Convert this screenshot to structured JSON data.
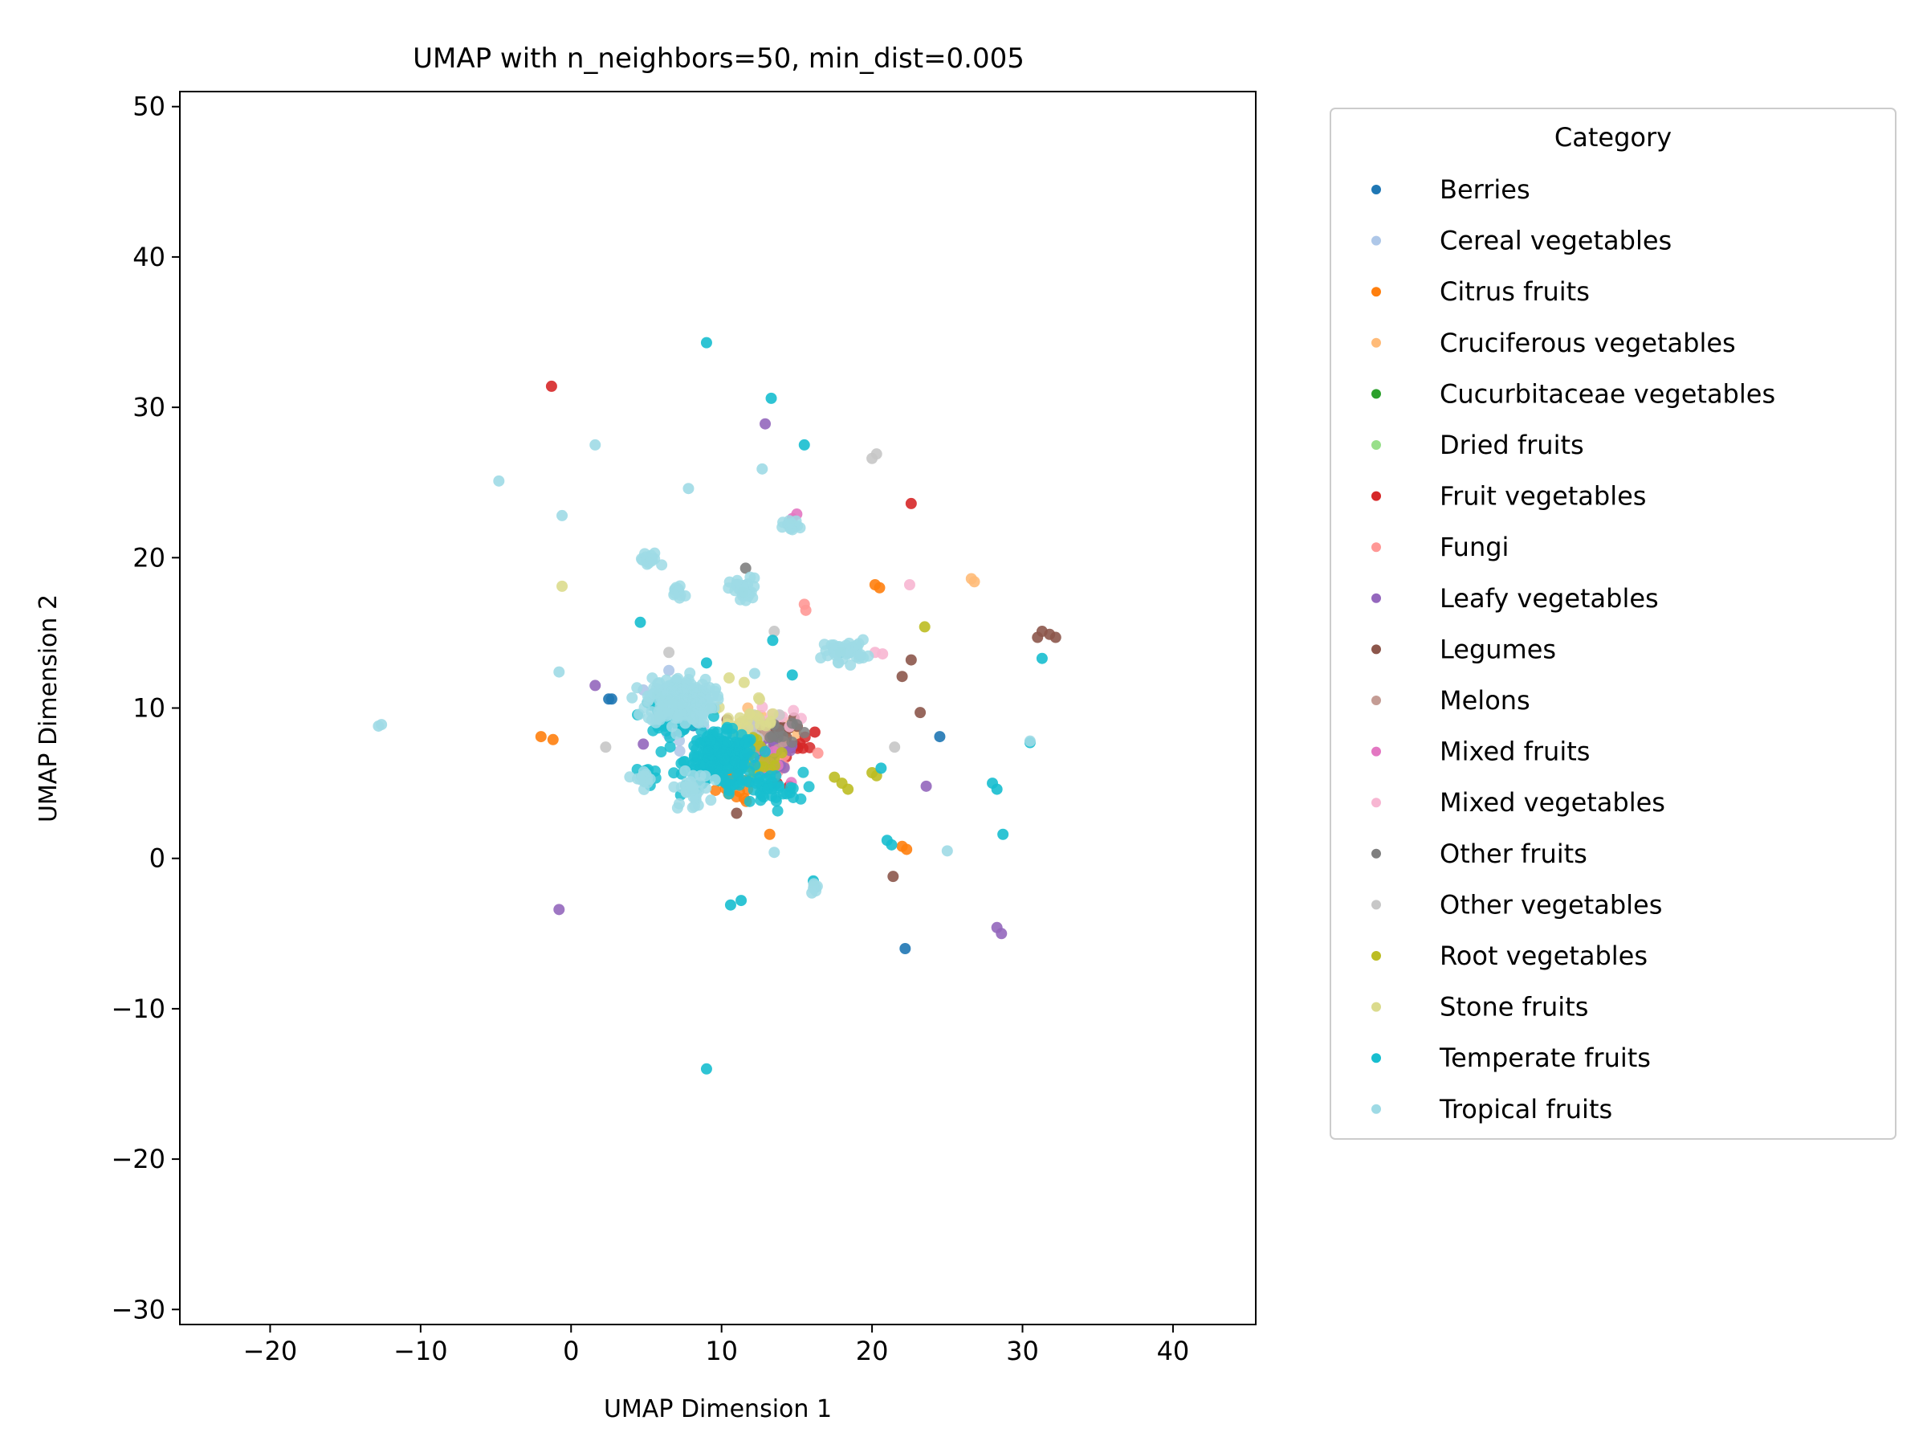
{
  "chart_data": {
    "type": "scatter",
    "title": "UMAP with n_neighbors=50, min_dist=0.005",
    "xlabel": "UMAP Dimension 1",
    "ylabel": "UMAP Dimension 2",
    "xlim": [
      -26,
      45.5
    ],
    "ylim": [
      -31,
      51
    ],
    "x_ticks": [
      -20,
      -10,
      0,
      10,
      20,
      30,
      40
    ],
    "y_ticks": [
      -30,
      -20,
      -10,
      0,
      10,
      20,
      30,
      40,
      50
    ],
    "x_tick_labels": [
      "−20",
      "−10",
      "0",
      "10",
      "20",
      "30",
      "40"
    ],
    "y_tick_labels": [
      "−30",
      "−20",
      "−10",
      "0",
      "10",
      "20",
      "30",
      "40",
      "50"
    ],
    "grid": false,
    "legend": {
      "title": "Category",
      "placement": "outside-right"
    },
    "series": [
      {
        "name": "Berries",
        "color": "#1f77b4",
        "points": [
          [
            2.5,
            10.6
          ],
          [
            24.5,
            8.1
          ],
          [
            22.2,
            -6.0
          ],
          [
            2.7,
            10.6
          ]
        ],
        "clusters": [
          [
            7.5,
            9.2,
            1.2,
            0.9,
            14
          ]
        ]
      },
      {
        "name": "Cereal vegetables",
        "color": "#aec7e8",
        "points": [
          [
            4.8,
            11.2
          ],
          [
            6.5,
            12.5
          ]
        ],
        "clusters": [
          [
            7.5,
            9.5,
            1.5,
            1.5,
            30
          ]
        ]
      },
      {
        "name": "Citrus fruits",
        "color": "#ff7f0e",
        "points": [
          [
            -2.0,
            8.1
          ],
          [
            -1.2,
            7.9
          ],
          [
            13.2,
            1.6
          ],
          [
            20.2,
            18.2
          ],
          [
            20.5,
            18.0
          ],
          [
            22.0,
            0.8
          ],
          [
            22.3,
            0.6
          ],
          [
            11.5,
            4.0
          ]
        ],
        "clusters": [
          [
            11.0,
            5.0,
            1.5,
            1.0,
            16
          ]
        ]
      },
      {
        "name": "Cruciferous vegetables",
        "color": "#ffbb78",
        "points": [
          [
            26.8,
            18.4
          ],
          [
            26.6,
            18.6
          ]
        ],
        "clusters": [
          [
            12.5,
            8.5,
            2.0,
            1.0,
            30
          ]
        ]
      },
      {
        "name": "Cucurbitaceae vegetables",
        "color": "#2ca02c",
        "points": [],
        "clusters": [
          [
            12.0,
            7.5,
            1.0,
            0.8,
            8
          ]
        ]
      },
      {
        "name": "Dried fruits",
        "color": "#98df8a",
        "points": [],
        "clusters": [
          [
            13.0,
            8.0,
            1.0,
            0.8,
            10
          ]
        ]
      },
      {
        "name": "Fruit vegetables",
        "color": "#d62728",
        "points": [
          [
            -1.3,
            31.4
          ],
          [
            22.6,
            23.6
          ],
          [
            16.2,
            8.4
          ],
          [
            13.7,
            5.0
          ],
          [
            14.5,
            4.8
          ]
        ],
        "clusters": [
          [
            14.5,
            7.5,
            1.2,
            1.0,
            16
          ]
        ]
      },
      {
        "name": "Fungi",
        "color": "#ff9896",
        "points": [
          [
            15.5,
            16.9
          ],
          [
            15.6,
            16.5
          ],
          [
            16.4,
            7.0
          ]
        ],
        "clusters": [
          [
            13.5,
            6.5,
            1.0,
            1.0,
            10
          ]
        ]
      },
      {
        "name": "Leafy vegetables",
        "color": "#9467bd",
        "points": [
          [
            12.9,
            28.9
          ],
          [
            -0.8,
            -3.4
          ],
          [
            23.6,
            4.8
          ],
          [
            28.3,
            -4.6
          ],
          [
            28.6,
            -5.0
          ],
          [
            4.8,
            7.6
          ],
          [
            1.6,
            11.5
          ]
        ],
        "clusters": [
          [
            13.5,
            7.0,
            1.5,
            1.5,
            26
          ]
        ]
      },
      {
        "name": "Legumes",
        "color": "#8c564b",
        "points": [
          [
            31.0,
            14.7
          ],
          [
            31.3,
            15.1
          ],
          [
            31.8,
            14.9
          ],
          [
            32.2,
            14.7
          ],
          [
            22.6,
            13.2
          ],
          [
            22.0,
            12.1
          ],
          [
            21.4,
            -1.2
          ],
          [
            23.2,
            9.7
          ],
          [
            11.0,
            3.0
          ]
        ],
        "clusters": [
          [
            13.5,
            8.8,
            1.5,
            0.6,
            20
          ]
        ]
      },
      {
        "name": "Melons",
        "color": "#c49c94",
        "points": [
          [
            12.5,
            9.0
          ]
        ],
        "clusters": [
          [
            12.5,
            8.0,
            1.2,
            1.0,
            14
          ]
        ]
      },
      {
        "name": "Mixed fruits",
        "color": "#e377c2",
        "points": [
          [
            15.0,
            22.9
          ],
          [
            14.7,
            22.6
          ]
        ],
        "clusters": [
          [
            13.0,
            6.0,
            1.0,
            0.8,
            8
          ]
        ]
      },
      {
        "name": "Mixed vegetables",
        "color": "#f7b6d2",
        "points": [
          [
            22.5,
            18.2
          ],
          [
            20.2,
            13.7
          ],
          [
            20.7,
            13.6
          ]
        ],
        "clusters": [
          [
            14.0,
            9.5,
            1.2,
            0.8,
            10
          ]
        ]
      },
      {
        "name": "Other fruits",
        "color": "#7f7f7f",
        "points": [
          [
            11.6,
            19.3
          ],
          [
            11.4,
            17.7
          ]
        ],
        "clusters": [
          [
            13.5,
            8.5,
            1.2,
            0.8,
            12
          ]
        ]
      },
      {
        "name": "Other vegetables",
        "color": "#c7c7c7",
        "points": [
          [
            20.0,
            26.6
          ],
          [
            20.3,
            26.9
          ],
          [
            2.3,
            7.4
          ],
          [
            21.5,
            7.4
          ],
          [
            6.5,
            13.7
          ],
          [
            13.5,
            15.1
          ]
        ],
        "clusters": [
          [
            12.0,
            8.5,
            1.5,
            1.0,
            16
          ]
        ]
      },
      {
        "name": "Root vegetables",
        "color": "#bcbd22",
        "points": [
          [
            23.5,
            15.4
          ],
          [
            18.0,
            5.0
          ],
          [
            18.4,
            4.6
          ],
          [
            20.0,
            5.7
          ],
          [
            20.3,
            5.5
          ],
          [
            17.5,
            5.4
          ]
        ],
        "clusters": [
          [
            12.5,
            6.8,
            1.5,
            1.2,
            20
          ]
        ]
      },
      {
        "name": "Stone fruits",
        "color": "#dbdb8d",
        "points": [
          [
            -0.6,
            18.1
          ],
          [
            10.5,
            12.0
          ],
          [
            11.5,
            11.7
          ]
        ],
        "clusters": [
          [
            11.5,
            9.0,
            1.8,
            1.2,
            30
          ]
        ]
      },
      {
        "name": "Temperate fruits",
        "color": "#17becf",
        "points": [
          [
            9.0,
            34.3
          ],
          [
            13.3,
            30.6
          ],
          [
            15.5,
            27.5
          ],
          [
            4.6,
            15.7
          ],
          [
            13.4,
            14.5
          ],
          [
            10.6,
            -3.1
          ],
          [
            11.3,
            -2.8
          ],
          [
            16.1,
            -1.5
          ],
          [
            21.0,
            1.2
          ],
          [
            21.3,
            0.9
          ],
          [
            28.0,
            5.0
          ],
          [
            28.3,
            4.6
          ],
          [
            28.7,
            1.6
          ],
          [
            30.5,
            7.7
          ],
          [
            31.3,
            13.3
          ],
          [
            9.0,
            -14.0
          ],
          [
            17.9,
            13.7
          ],
          [
            9.0,
            13.0
          ],
          [
            14.7,
            12.2
          ],
          [
            20.6,
            6.0
          ]
        ],
        "clusters": [
          [
            10.0,
            6.5,
            2.0,
            1.5,
            220
          ],
          [
            6.5,
            9.5,
            1.5,
            1.0,
            50
          ],
          [
            13.0,
            4.5,
            2.0,
            1.0,
            40
          ],
          [
            5.0,
            5.5,
            0.6,
            0.6,
            18
          ]
        ]
      },
      {
        "name": "Tropical fruits",
        "color": "#9edae5",
        "points": [
          [
            -12.8,
            8.8
          ],
          [
            -12.6,
            8.9
          ],
          [
            -4.8,
            25.1
          ],
          [
            -0.6,
            22.8
          ],
          [
            1.6,
            27.5
          ],
          [
            7.8,
            24.6
          ],
          [
            12.7,
            25.9
          ],
          [
            -0.8,
            12.4
          ],
          [
            13.5,
            0.4
          ],
          [
            25.0,
            0.5
          ],
          [
            16.0,
            -2.3
          ],
          [
            30.5,
            7.8
          ],
          [
            12.2,
            12.3
          ]
        ],
        "clusters": [
          [
            7.2,
            10.5,
            1.8,
            1.3,
            220
          ],
          [
            11.5,
            17.8,
            0.8,
            0.7,
            30
          ],
          [
            14.7,
            22.0,
            0.5,
            0.4,
            14
          ],
          [
            5.2,
            19.8,
            0.6,
            0.5,
            14
          ],
          [
            7.2,
            17.8,
            0.6,
            0.5,
            14
          ],
          [
            18.2,
            13.8,
            1.2,
            0.6,
            40
          ],
          [
            8.0,
            4.5,
            1.0,
            1.0,
            30
          ],
          [
            4.8,
            5.3,
            0.5,
            0.5,
            14
          ],
          [
            16.2,
            -1.8,
            0.3,
            0.3,
            8
          ]
        ]
      }
    ]
  }
}
